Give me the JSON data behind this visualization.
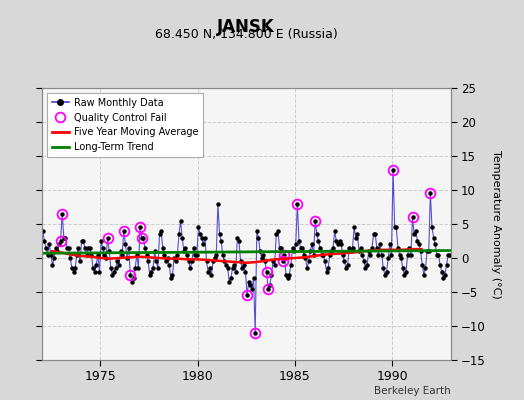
{
  "title": "JANSK",
  "subtitle": "68.450 N, 134.800 E (Russia)",
  "ylabel": "Temperature Anomaly (°C)",
  "credit": "Berkeley Earth",
  "xlim": [
    1972.0,
    1993.0
  ],
  "ylim": [
    -15,
    25
  ],
  "yticks": [
    -15,
    -10,
    -5,
    0,
    5,
    10,
    15,
    20,
    25
  ],
  "xticks": [
    1975,
    1980,
    1985,
    1990
  ],
  "plot_bg": "#f0f0f0",
  "fig_bg": "#e0e0e0",
  "raw_color": "#4040cc",
  "marker_color": "black",
  "qc_color": "magenta",
  "ma_color": "red",
  "trend_color": "green",
  "raw_data": [
    [
      1972.042,
      4.0
    ],
    [
      1972.125,
      2.5
    ],
    [
      1972.208,
      1.5
    ],
    [
      1972.292,
      0.5
    ],
    [
      1972.375,
      2.0
    ],
    [
      1972.458,
      0.5
    ],
    [
      1972.542,
      -1.0
    ],
    [
      1972.625,
      0.0
    ],
    [
      1972.708,
      1.5
    ],
    [
      1972.792,
      1.0
    ],
    [
      1972.875,
      2.0
    ],
    [
      1972.958,
      2.5
    ],
    [
      1973.042,
      6.5
    ],
    [
      1973.125,
      3.0
    ],
    [
      1973.208,
      3.0
    ],
    [
      1973.292,
      1.5
    ],
    [
      1973.375,
      1.5
    ],
    [
      1973.458,
      0.0
    ],
    [
      1973.542,
      -1.5
    ],
    [
      1973.625,
      -2.0
    ],
    [
      1973.708,
      -1.5
    ],
    [
      1973.792,
      0.5
    ],
    [
      1973.875,
      1.5
    ],
    [
      1973.958,
      -0.5
    ],
    [
      1974.042,
      2.5
    ],
    [
      1974.125,
      2.5
    ],
    [
      1974.208,
      1.5
    ],
    [
      1974.292,
      0.5
    ],
    [
      1974.375,
      1.5
    ],
    [
      1974.458,
      1.5
    ],
    [
      1974.542,
      0.5
    ],
    [
      1974.625,
      -1.5
    ],
    [
      1974.708,
      -2.0
    ],
    [
      1974.792,
      -1.0
    ],
    [
      1974.875,
      0.5
    ],
    [
      1974.958,
      -2.0
    ],
    [
      1975.042,
      2.5
    ],
    [
      1975.125,
      1.5
    ],
    [
      1975.208,
      0.5
    ],
    [
      1975.292,
      0.0
    ],
    [
      1975.375,
      3.0
    ],
    [
      1975.458,
      1.0
    ],
    [
      1975.542,
      -1.5
    ],
    [
      1975.625,
      -2.5
    ],
    [
      1975.708,
      -2.0
    ],
    [
      1975.792,
      -1.5
    ],
    [
      1975.875,
      -0.5
    ],
    [
      1975.958,
      -1.0
    ],
    [
      1976.042,
      1.0
    ],
    [
      1976.125,
      0.5
    ],
    [
      1976.208,
      4.0
    ],
    [
      1976.292,
      2.0
    ],
    [
      1976.375,
      0.0
    ],
    [
      1976.458,
      1.5
    ],
    [
      1976.542,
      -2.5
    ],
    [
      1976.625,
      -3.5
    ],
    [
      1976.708,
      -3.0
    ],
    [
      1976.792,
      -1.5
    ],
    [
      1976.875,
      0.5
    ],
    [
      1976.958,
      -1.5
    ],
    [
      1977.042,
      4.5
    ],
    [
      1977.125,
      3.0
    ],
    [
      1977.208,
      3.0
    ],
    [
      1977.292,
      1.5
    ],
    [
      1977.375,
      0.5
    ],
    [
      1977.458,
      -0.5
    ],
    [
      1977.542,
      -2.5
    ],
    [
      1977.625,
      -2.0
    ],
    [
      1977.708,
      -1.5
    ],
    [
      1977.792,
      1.0
    ],
    [
      1977.875,
      -0.5
    ],
    [
      1977.958,
      -1.5
    ],
    [
      1978.042,
      3.5
    ],
    [
      1978.125,
      4.0
    ],
    [
      1978.208,
      1.5
    ],
    [
      1978.292,
      0.5
    ],
    [
      1978.375,
      -0.5
    ],
    [
      1978.458,
      0.0
    ],
    [
      1978.542,
      -1.0
    ],
    [
      1978.625,
      -3.0
    ],
    [
      1978.708,
      -2.5
    ],
    [
      1978.792,
      0.0
    ],
    [
      1978.875,
      -0.5
    ],
    [
      1978.958,
      0.5
    ],
    [
      1979.042,
      3.5
    ],
    [
      1979.125,
      5.5
    ],
    [
      1979.208,
      3.0
    ],
    [
      1979.292,
      1.0
    ],
    [
      1979.375,
      1.5
    ],
    [
      1979.458,
      0.5
    ],
    [
      1979.542,
      -0.5
    ],
    [
      1979.625,
      -1.5
    ],
    [
      1979.708,
      -0.5
    ],
    [
      1979.792,
      1.5
    ],
    [
      1979.875,
      0.5
    ],
    [
      1979.958,
      0.5
    ],
    [
      1980.042,
      4.5
    ],
    [
      1980.125,
      3.5
    ],
    [
      1980.208,
      3.0
    ],
    [
      1980.292,
      2.0
    ],
    [
      1980.375,
      3.0
    ],
    [
      1980.458,
      -0.5
    ],
    [
      1980.542,
      -2.0
    ],
    [
      1980.625,
      -1.5
    ],
    [
      1980.708,
      -2.5
    ],
    [
      1980.792,
      -0.5
    ],
    [
      1980.875,
      0.0
    ],
    [
      1980.958,
      0.5
    ],
    [
      1981.042,
      8.0
    ],
    [
      1981.125,
      3.5
    ],
    [
      1981.208,
      2.5
    ],
    [
      1981.292,
      0.5
    ],
    [
      1981.375,
      -0.5
    ],
    [
      1981.458,
      -1.0
    ],
    [
      1981.542,
      -1.5
    ],
    [
      1981.625,
      -3.5
    ],
    [
      1981.708,
      -3.0
    ],
    [
      1981.792,
      -1.5
    ],
    [
      1981.875,
      -1.0
    ],
    [
      1981.958,
      -2.0
    ],
    [
      1982.042,
      3.0
    ],
    [
      1982.125,
      2.5
    ],
    [
      1982.208,
      -0.5
    ],
    [
      1982.292,
      -1.5
    ],
    [
      1982.375,
      -1.0
    ],
    [
      1982.458,
      -2.0
    ],
    [
      1982.542,
      -5.5
    ],
    [
      1982.625,
      -3.5
    ],
    [
      1982.708,
      -4.0
    ],
    [
      1982.792,
      -4.5
    ],
    [
      1982.875,
      -3.0
    ],
    [
      1982.958,
      -11.0
    ],
    [
      1983.042,
      4.0
    ],
    [
      1983.125,
      3.0
    ],
    [
      1983.208,
      1.0
    ],
    [
      1983.292,
      0.0
    ],
    [
      1983.375,
      0.5
    ],
    [
      1983.458,
      -0.5
    ],
    [
      1983.542,
      -2.0
    ],
    [
      1983.625,
      -4.5
    ],
    [
      1983.708,
      -4.0
    ],
    [
      1983.792,
      -2.5
    ],
    [
      1983.875,
      -0.5
    ],
    [
      1983.958,
      -1.0
    ],
    [
      1984.042,
      3.5
    ],
    [
      1984.125,
      4.0
    ],
    [
      1984.208,
      1.5
    ],
    [
      1984.292,
      1.5
    ],
    [
      1984.375,
      -0.5
    ],
    [
      1984.458,
      0.5
    ],
    [
      1984.542,
      -2.5
    ],
    [
      1984.625,
      -3.0
    ],
    [
      1984.708,
      -2.5
    ],
    [
      1984.792,
      -1.0
    ],
    [
      1984.875,
      1.5
    ],
    [
      1984.958,
      1.0
    ],
    [
      1985.042,
      2.0
    ],
    [
      1985.125,
      8.0
    ],
    [
      1985.208,
      2.5
    ],
    [
      1985.292,
      1.5
    ],
    [
      1985.375,
      1.5
    ],
    [
      1985.458,
      0.5
    ],
    [
      1985.542,
      0.0
    ],
    [
      1985.625,
      -1.5
    ],
    [
      1985.708,
      -0.5
    ],
    [
      1985.792,
      1.0
    ],
    [
      1985.875,
      2.0
    ],
    [
      1985.958,
      0.5
    ],
    [
      1986.042,
      5.5
    ],
    [
      1986.125,
      3.5
    ],
    [
      1986.208,
      2.5
    ],
    [
      1986.292,
      1.5
    ],
    [
      1986.375,
      0.5
    ],
    [
      1986.458,
      0.5
    ],
    [
      1986.542,
      -0.5
    ],
    [
      1986.625,
      -2.0
    ],
    [
      1986.708,
      -1.5
    ],
    [
      1986.792,
      0.5
    ],
    [
      1986.875,
      1.0
    ],
    [
      1986.958,
      1.5
    ],
    [
      1987.042,
      4.0
    ],
    [
      1987.125,
      2.5
    ],
    [
      1987.208,
      2.0
    ],
    [
      1987.292,
      2.5
    ],
    [
      1987.375,
      2.0
    ],
    [
      1987.458,
      0.5
    ],
    [
      1987.542,
      -0.5
    ],
    [
      1987.625,
      -1.5
    ],
    [
      1987.708,
      -1.0
    ],
    [
      1987.792,
      1.5
    ],
    [
      1987.875,
      1.0
    ],
    [
      1987.958,
      1.5
    ],
    [
      1988.042,
      4.5
    ],
    [
      1988.125,
      3.0
    ],
    [
      1988.208,
      3.5
    ],
    [
      1988.292,
      1.0
    ],
    [
      1988.375,
      1.5
    ],
    [
      1988.458,
      0.5
    ],
    [
      1988.542,
      -0.5
    ],
    [
      1988.625,
      -1.5
    ],
    [
      1988.708,
      -1.0
    ],
    [
      1988.792,
      1.0
    ],
    [
      1988.875,
      0.5
    ],
    [
      1988.958,
      1.5
    ],
    [
      1989.042,
      3.5
    ],
    [
      1989.125,
      3.5
    ],
    [
      1989.208,
      1.5
    ],
    [
      1989.292,
      0.5
    ],
    [
      1989.375,
      2.0
    ],
    [
      1989.458,
      0.5
    ],
    [
      1989.542,
      -1.5
    ],
    [
      1989.625,
      -2.5
    ],
    [
      1989.708,
      -2.0
    ],
    [
      1989.792,
      0.0
    ],
    [
      1989.875,
      2.0
    ],
    [
      1989.958,
      0.5
    ],
    [
      1990.042,
      13.0
    ],
    [
      1990.125,
      4.5
    ],
    [
      1990.208,
      4.5
    ],
    [
      1990.292,
      1.5
    ],
    [
      1990.375,
      0.5
    ],
    [
      1990.458,
      0.0
    ],
    [
      1990.542,
      -1.5
    ],
    [
      1990.625,
      -2.5
    ],
    [
      1990.708,
      -2.0
    ],
    [
      1990.792,
      0.5
    ],
    [
      1990.875,
      1.5
    ],
    [
      1990.958,
      0.5
    ],
    [
      1991.042,
      6.0
    ],
    [
      1991.125,
      3.5
    ],
    [
      1991.208,
      4.0
    ],
    [
      1991.292,
      2.5
    ],
    [
      1991.375,
      2.0
    ],
    [
      1991.458,
      1.0
    ],
    [
      1991.542,
      -1.0
    ],
    [
      1991.625,
      -2.5
    ],
    [
      1991.708,
      -1.5
    ],
    [
      1991.792,
      1.0
    ],
    [
      1991.875,
      1.0
    ],
    [
      1991.958,
      9.5
    ],
    [
      1992.042,
      4.5
    ],
    [
      1992.125,
      3.0
    ],
    [
      1992.208,
      2.0
    ],
    [
      1992.292,
      0.5
    ],
    [
      1992.375,
      0.5
    ],
    [
      1992.458,
      -1.0
    ],
    [
      1992.542,
      -2.0
    ],
    [
      1992.625,
      -3.0
    ],
    [
      1992.708,
      -2.5
    ],
    [
      1992.792,
      -1.0
    ],
    [
      1992.875,
      0.5
    ],
    [
      1992.958,
      0.5
    ]
  ],
  "qc_fail": [
    [
      1972.958,
      2.5
    ],
    [
      1973.042,
      6.5
    ],
    [
      1975.375,
      3.0
    ],
    [
      1976.208,
      4.0
    ],
    [
      1976.542,
      -2.5
    ],
    [
      1977.042,
      4.5
    ],
    [
      1977.125,
      3.0
    ],
    [
      1982.542,
      -5.5
    ],
    [
      1982.958,
      -11.0
    ],
    [
      1983.542,
      -2.0
    ],
    [
      1983.625,
      -4.5
    ],
    [
      1984.375,
      -0.5
    ],
    [
      1984.458,
      0.5
    ],
    [
      1985.125,
      8.0
    ],
    [
      1986.042,
      5.5
    ],
    [
      1990.042,
      13.0
    ],
    [
      1991.042,
      6.0
    ],
    [
      1991.958,
      9.5
    ]
  ],
  "moving_avg": [
    [
      1972.5,
      1.0
    ],
    [
      1973.0,
      0.8
    ],
    [
      1973.5,
      0.5
    ],
    [
      1974.0,
      0.3
    ],
    [
      1974.5,
      0.2
    ],
    [
      1975.0,
      0.0
    ],
    [
      1975.5,
      -0.1
    ],
    [
      1976.0,
      0.0
    ],
    [
      1976.5,
      0.1
    ],
    [
      1977.0,
      0.2
    ],
    [
      1977.5,
      0.1
    ],
    [
      1978.0,
      0.0
    ],
    [
      1978.5,
      -0.1
    ],
    [
      1979.0,
      -0.1
    ],
    [
      1979.5,
      -0.2
    ],
    [
      1980.0,
      -0.2
    ],
    [
      1980.5,
      -0.3
    ],
    [
      1981.0,
      -0.4
    ],
    [
      1981.5,
      -0.5
    ],
    [
      1982.0,
      -0.6
    ],
    [
      1982.5,
      -0.7
    ],
    [
      1983.0,
      -0.6
    ],
    [
      1983.5,
      -0.4
    ],
    [
      1984.0,
      -0.2
    ],
    [
      1984.5,
      -0.1
    ],
    [
      1985.0,
      0.0
    ],
    [
      1985.5,
      0.1
    ],
    [
      1986.0,
      0.3
    ],
    [
      1986.5,
      0.5
    ],
    [
      1987.0,
      0.6
    ],
    [
      1987.5,
      0.7
    ],
    [
      1988.0,
      0.8
    ],
    [
      1988.5,
      1.0
    ],
    [
      1989.0,
      1.1
    ],
    [
      1989.5,
      1.2
    ],
    [
      1990.0,
      1.2
    ],
    [
      1990.5,
      1.2
    ],
    [
      1991.0,
      1.3
    ],
    [
      1991.5,
      1.3
    ]
  ],
  "trend_x": [
    1972.0,
    1993.0
  ],
  "trend_y": [
    0.7,
    1.1
  ]
}
